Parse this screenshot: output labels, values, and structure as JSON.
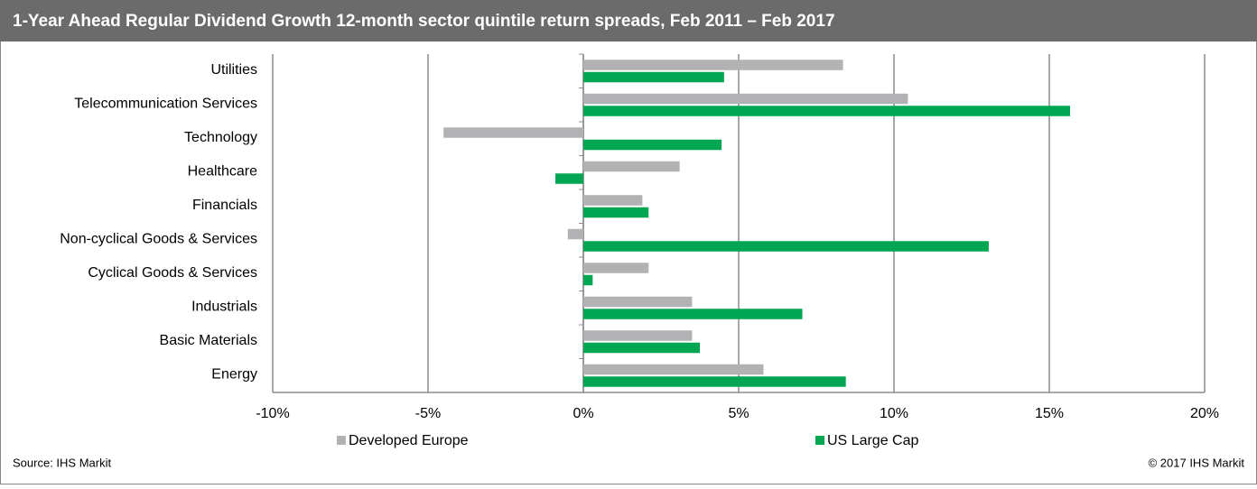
{
  "chart_data": {
    "type": "hbar",
    "title": "1-Year Ahead Regular Dividend Growth 12-month sector quintile return spreads, Feb 2011 – Feb 2017",
    "categories": [
      "Utilities",
      "Telecommunication Services",
      "Technology",
      "Healthcare",
      "Financials",
      "Non-cyclical Goods & Services",
      "Cyclical Goods & Services",
      "Industrials",
      "Basic Materials",
      "Energy"
    ],
    "series": [
      {
        "name": "Developed Europe",
        "color": "#b2b2b4",
        "values": [
          8.36,
          10.45,
          -4.5,
          3.1,
          1.9,
          -0.5,
          2.1,
          3.5,
          3.5,
          5.8
        ]
      },
      {
        "name": "US Large Cap",
        "color": "#00a651",
        "values": [
          4.53,
          15.67,
          4.45,
          -0.9,
          2.1,
          13.05,
          0.3,
          7.05,
          3.75,
          8.45
        ]
      }
    ],
    "xlim": [
      -10,
      20
    ],
    "xticks": [
      {
        "value": -10,
        "label": "-10%"
      },
      {
        "value": -5,
        "label": "-5%"
      },
      {
        "value": 0,
        "label": "0%"
      },
      {
        "value": 5,
        "label": "5%"
      },
      {
        "value": 10,
        "label": "10%"
      },
      {
        "value": 15,
        "label": "15%"
      },
      {
        "value": 20,
        "label": "20%"
      }
    ],
    "grid": true,
    "legend": "bottom",
    "source": "Source: IHS Markit",
    "copyright": "© 2017 IHS Markit"
  }
}
